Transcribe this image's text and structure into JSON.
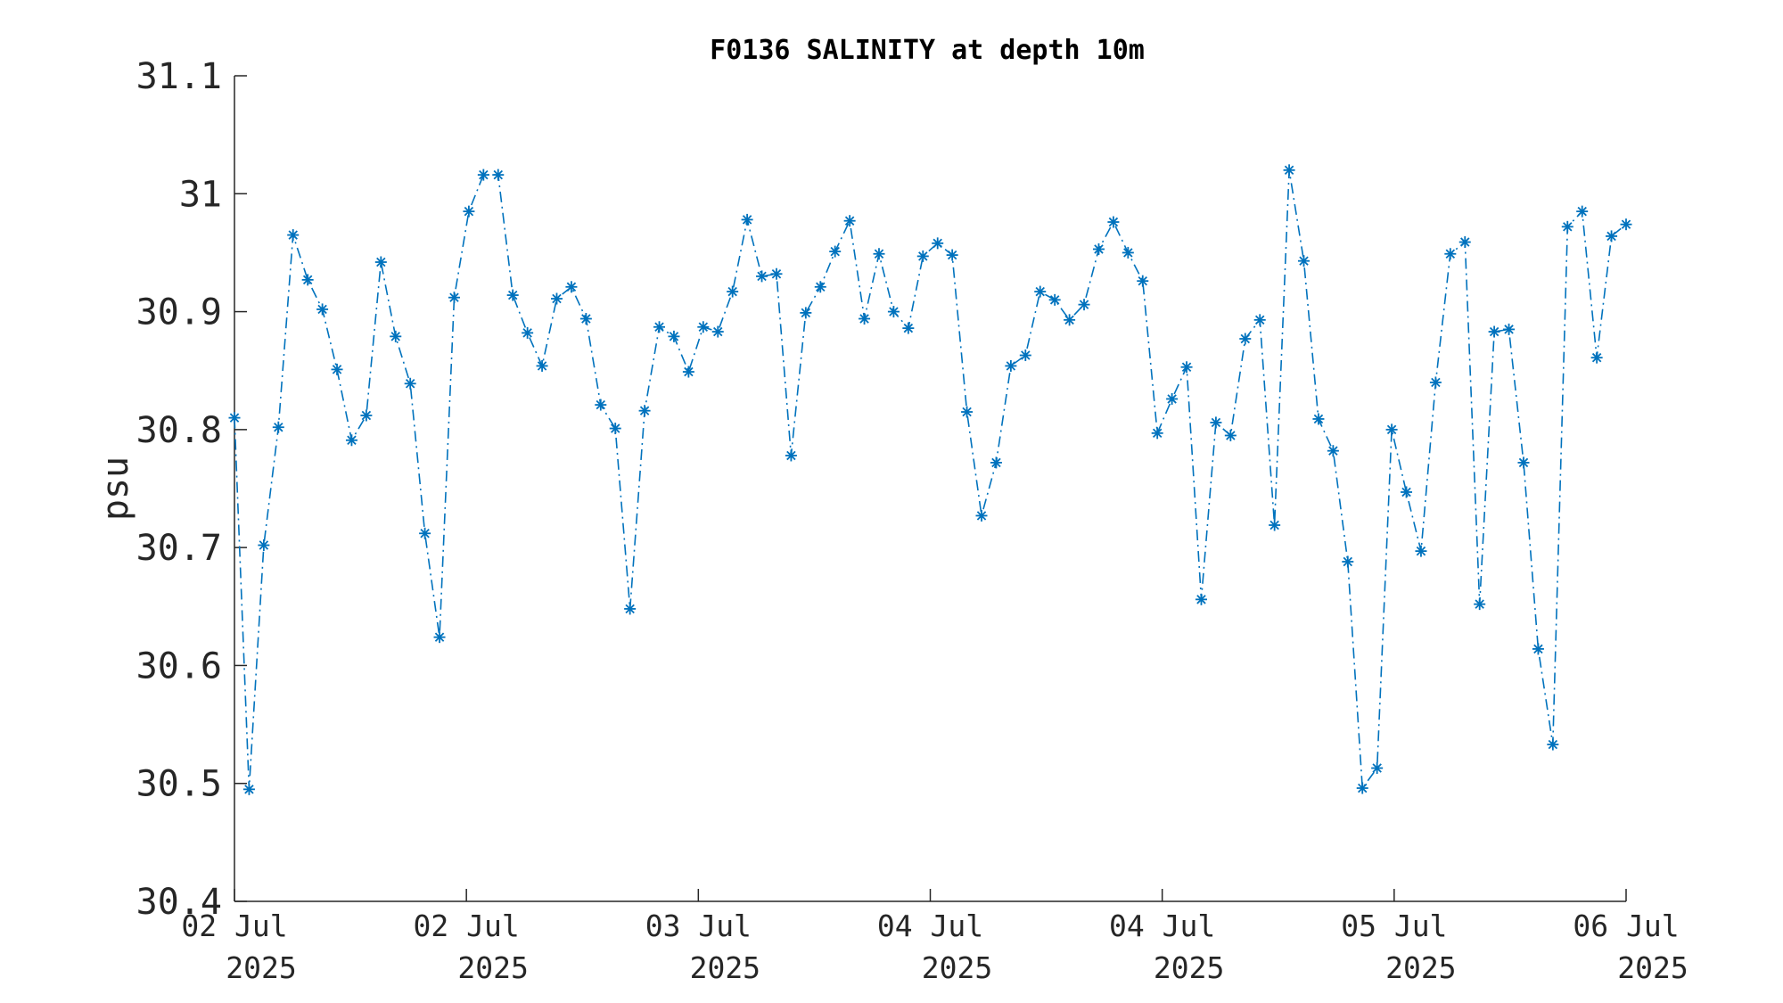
{
  "chart_data": {
    "type": "line",
    "title": "F0136 SALINITY at depth 10m",
    "ylabel": "psu",
    "xlabel": "",
    "ylim": [
      30.4,
      31.1
    ],
    "yticks": [
      "30.4",
      "30.5",
      "30.6",
      "30.7",
      "30.8",
      "30.9",
      "31",
      "31.1"
    ],
    "xtick_labels": [
      {
        "day": "02 Jul",
        "year": "2025"
      },
      {
        "day": "02 Jul",
        "year": "2025"
      },
      {
        "day": "03 Jul",
        "year": "2025"
      },
      {
        "day": "04 Jul",
        "year": "2025"
      },
      {
        "day": "04 Jul",
        "year": "2025"
      },
      {
        "day": "05 Jul",
        "year": "2025"
      },
      {
        "day": "06 Jul",
        "year": "2025"
      }
    ],
    "marker": "asterisk",
    "line_style": "dash-dot",
    "color": "#0072BD",
    "grid": false,
    "series": [
      {
        "values": [
          30.81,
          30.495,
          30.702,
          30.802,
          30.965,
          30.927,
          30.902,
          30.851,
          30.791,
          30.812,
          30.942,
          30.879,
          30.839,
          30.712,
          30.624,
          30.912,
          30.985,
          31.016,
          31.016,
          30.914,
          30.882,
          30.854,
          30.911,
          30.921,
          30.894,
          30.821,
          30.801,
          30.648,
          30.816,
          30.887,
          30.879,
          30.849,
          30.887,
          30.883,
          30.917,
          30.978,
          30.93,
          30.932,
          30.778,
          30.899,
          30.921,
          30.951,
          30.977,
          30.894,
          30.949,
          30.9,
          30.886,
          30.947,
          30.958,
          30.948,
          30.815,
          30.727,
          30.772,
          30.854,
          30.863,
          30.917,
          30.91,
          30.893,
          30.906,
          30.953,
          30.976,
          30.95,
          30.926,
          30.797,
          30.826,
          30.853,
          30.656,
          30.806,
          30.795,
          30.877,
          30.893,
          30.719,
          31.02,
          30.943,
          30.809,
          30.782,
          30.688,
          30.496,
          30.513,
          30.8,
          30.747,
          30.697,
          30.84,
          30.949,
          30.959,
          30.652,
          30.883,
          30.885,
          30.772,
          30.614,
          30.533,
          30.972,
          30.985,
          30.861,
          30.964,
          30.974
        ]
      }
    ]
  }
}
